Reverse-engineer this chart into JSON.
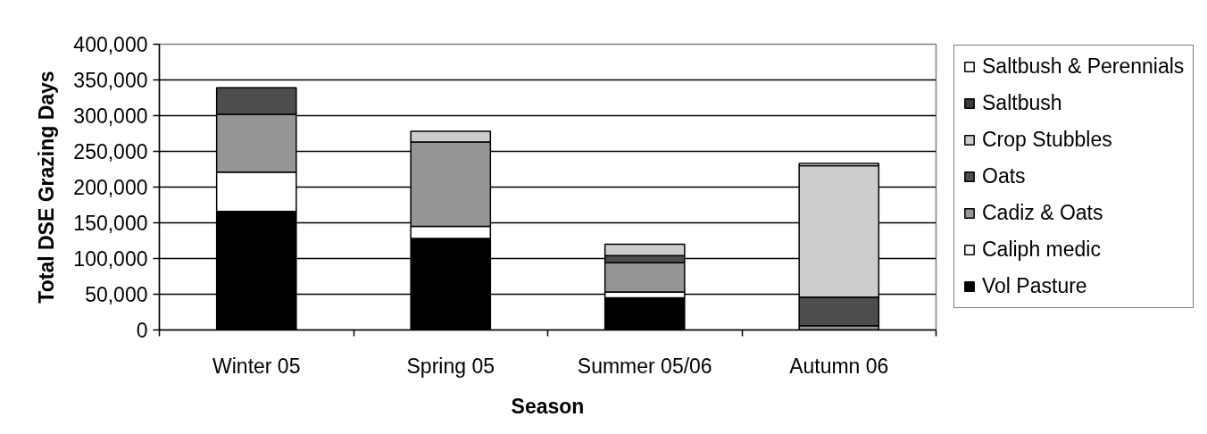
{
  "chart_data": {
    "type": "bar",
    "stacked": true,
    "xlabel": "Season",
    "ylabel": "Total DSE Grazing Days",
    "categories": [
      "Winter 05",
      "Spring 05",
      "Summer 05/06",
      "Autumn 06"
    ],
    "series": [
      {
        "name": "Vol Pasture",
        "color": "#000000",
        "values": [
          166000,
          128000,
          45000,
          null
        ]
      },
      {
        "name": "Caliph medic",
        "color": "#ffffff",
        "values": [
          55000,
          17000,
          8000,
          null
        ]
      },
      {
        "name": "Cadiz & Oats",
        "color": "#969696",
        "values": [
          81000,
          118000,
          41000,
          6000
        ]
      },
      {
        "name": "Oats",
        "color": "#4d4d4d",
        "values": [
          37000,
          null,
          10000,
          40000
        ]
      },
      {
        "name": "Crop Stubbles",
        "color": "#cccccc",
        "values": [
          null,
          15000,
          16000,
          184000
        ]
      },
      {
        "name": "Saltbush",
        "color": "#3c3c3c",
        "values": [
          null,
          null,
          null,
          null
        ]
      },
      {
        "name": "Saltbush & Perennials",
        "color": "#ffffff",
        "values": [
          null,
          null,
          null,
          3000
        ]
      }
    ],
    "ylim": [
      0,
      400000
    ],
    "yticks": [
      0,
      {
        "value": 50000,
        "label": "50,000"
      },
      {
        "value": 100000,
        "label": "100,000"
      },
      {
        "value": 150000,
        "label": "150,000"
      },
      {
        "value": 200000,
        "label": "200,000"
      },
      {
        "value": 250000,
        "label": "250,000"
      },
      {
        "value": 300000,
        "label": "300,000"
      },
      {
        "value": 350000,
        "label": "350,000"
      },
      {
        "value": 400000,
        "label": "400,000"
      }
    ],
    "grid": "y",
    "legend": "right"
  }
}
